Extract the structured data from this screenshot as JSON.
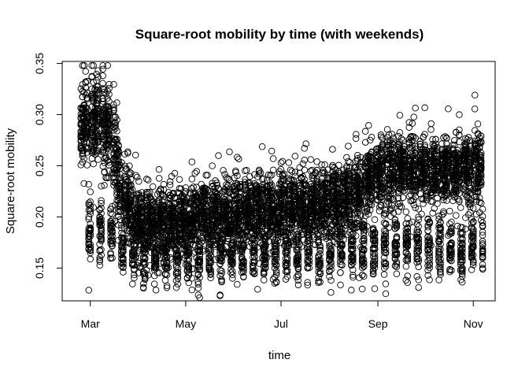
{
  "chart_data": {
    "type": "scatter",
    "title": "Square-root mobility by time (with weekends)",
    "xlabel": "time",
    "ylabel": "Square-root mobility",
    "x_ticks": [
      {
        "label": "Mar",
        "date": "2020-03-01"
      },
      {
        "label": "May",
        "date": "2020-05-01"
      },
      {
        "label": "Jul",
        "date": "2020-07-01"
      },
      {
        "label": "Sep",
        "date": "2020-09-01"
      },
      {
        "label": "Nov",
        "date": "2020-11-01"
      }
    ],
    "y_ticks": [
      0.15,
      0.2,
      0.25,
      0.3,
      0.35
    ],
    "y_tick_labels": [
      "0.15",
      "0.20",
      "0.25",
      "0.30",
      "0.35"
    ],
    "xlim": [
      "2020-02-12",
      "2020-11-15"
    ],
    "ylim": [
      0.118,
      0.352
    ],
    "grid": false,
    "marker": "open-circle",
    "color": "#000000",
    "x_range": [
      "2020-02-24",
      "2020-11-07"
    ],
    "y_observed_range": [
      0.12,
      0.348
    ],
    "daily_trend": [
      {
        "date": "2020-02-24",
        "weekday": 0.29,
        "weekend": 0.19
      },
      {
        "date": "2020-03-07",
        "weekday": 0.295,
        "weekend": 0.185
      },
      {
        "date": "2020-03-15",
        "weekday": 0.285,
        "weekend": 0.182
      },
      {
        "date": "2020-03-20",
        "weekday": 0.228,
        "weekend": 0.17
      },
      {
        "date": "2020-04-01",
        "weekday": 0.195,
        "weekend": 0.16
      },
      {
        "date": "2020-05-01",
        "weekday": 0.198,
        "weekend": 0.16
      },
      {
        "date": "2020-06-01",
        "weekday": 0.205,
        "weekend": 0.162
      },
      {
        "date": "2020-07-01",
        "weekday": 0.21,
        "weekend": 0.165
      },
      {
        "date": "2020-08-01",
        "weekday": 0.214,
        "weekend": 0.168
      },
      {
        "date": "2020-08-20",
        "weekday": 0.225,
        "weekend": 0.168
      },
      {
        "date": "2020-09-01",
        "weekday": 0.245,
        "weekend": 0.17
      },
      {
        "date": "2020-10-01",
        "weekday": 0.245,
        "weekend": 0.172
      },
      {
        "date": "2020-11-07",
        "weekday": 0.248,
        "weekend": 0.17
      }
    ],
    "point_spread_sd": 0.016
  }
}
